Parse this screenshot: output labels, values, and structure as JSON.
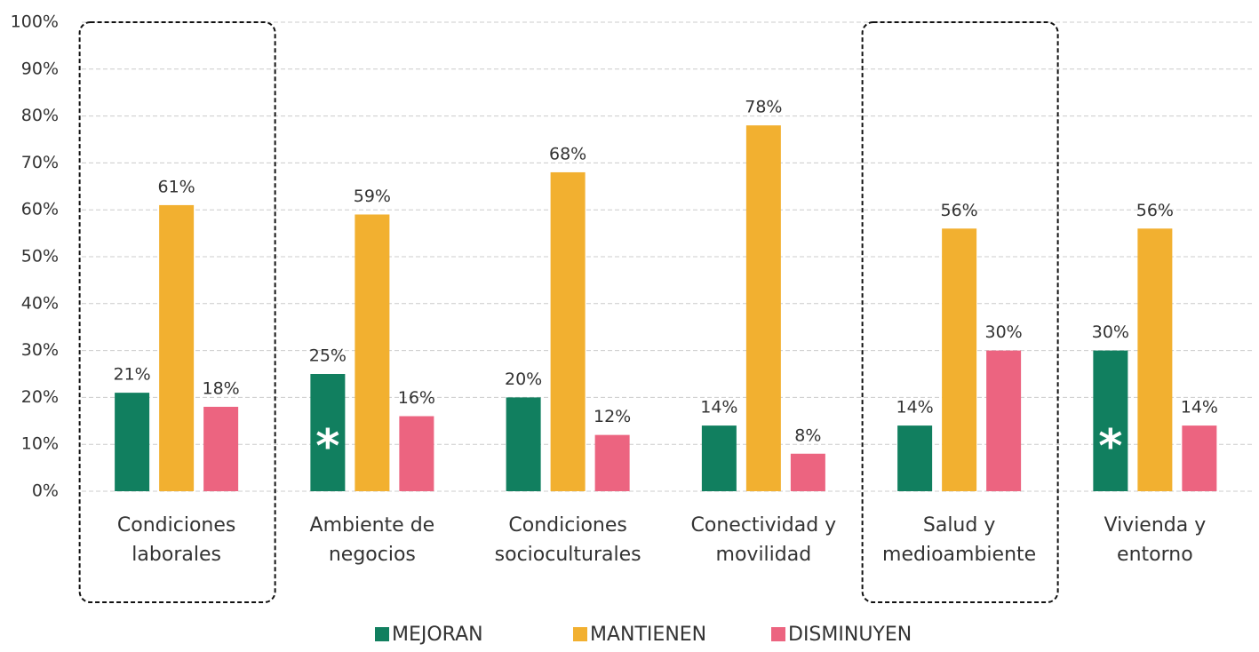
{
  "chart_data": {
    "type": "bar",
    "categories": [
      [
        "Condiciones",
        "laborales"
      ],
      [
        "Ambiente de",
        "negocios"
      ],
      [
        "Condiciones",
        "socioculturales"
      ],
      [
        "Conectividad y",
        "movilidad"
      ],
      [
        "Salud y",
        "medioambiente"
      ],
      [
        "Vivienda y",
        "entorno"
      ]
    ],
    "series": [
      {
        "name": "MEJORAN",
        "color": "#117f5f",
        "values": [
          21,
          25,
          20,
          14,
          14,
          30
        ],
        "value_labels": [
          "21%",
          "25%",
          "20%",
          "14%",
          "14%",
          "30%"
        ]
      },
      {
        "name": "MANTIENEN",
        "color": "#f2b030",
        "values": [
          61,
          59,
          68,
          78,
          56,
          56
        ],
        "value_labels": [
          "61%",
          "59%",
          "68%",
          "78%",
          "56%",
          "56%"
        ]
      },
      {
        "name": "DISMINUYEN",
        "color": "#ec6480",
        "values": [
          18,
          16,
          12,
          8,
          30,
          14
        ],
        "value_labels": [
          "18%",
          "16%",
          "12%",
          "8%",
          "30%",
          "14%"
        ]
      }
    ],
    "annotations": [
      {
        "text": "*",
        "series": 0,
        "index": 1
      },
      {
        "text": "*",
        "series": 0,
        "index": 5
      }
    ],
    "highlight": [
      0,
      4
    ],
    "ylim": [
      0,
      100
    ],
    "yticks": [
      {
        "value": 0,
        "label": "0%"
      },
      {
        "value": 10,
        "label": "10%"
      },
      {
        "value": 20,
        "label": "20%"
      },
      {
        "value": 30,
        "label": "30%"
      },
      {
        "value": 40,
        "label": "40%"
      },
      {
        "value": 50,
        "label": "50%"
      },
      {
        "value": 60,
        "label": "60%"
      },
      {
        "value": 70,
        "label": "70%"
      },
      {
        "value": 80,
        "label": "80%"
      },
      {
        "value": 90,
        "label": "90%"
      },
      {
        "value": 100,
        "label": "100%"
      }
    ],
    "grid": true,
    "legend": "bottom"
  }
}
